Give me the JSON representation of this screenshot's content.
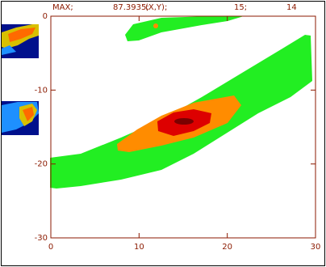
{
  "chart_data": {
    "type": "contour",
    "header": [
      "MAX;",
      "87.3935;",
      "(X,Y);",
      "15;",
      "14"
    ],
    "xlim": [
      0,
      30
    ],
    "ylim": [
      -30,
      0
    ],
    "xticks": [
      0,
      10,
      20,
      30
    ],
    "yticks": [
      0,
      -10,
      -20,
      -30
    ],
    "axis_color": "#8b1a00"
  }
}
